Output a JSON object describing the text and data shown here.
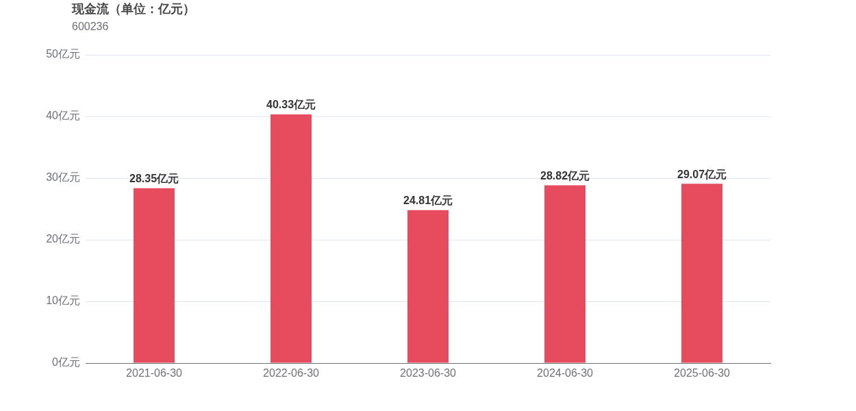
{
  "chart_data": {
    "type": "bar",
    "title": "现金流（单位：亿元）",
    "subtitle": "600236",
    "categories": [
      "2021-06-30",
      "2022-06-30",
      "2023-06-30",
      "2024-06-30",
      "2025-06-30"
    ],
    "values": [
      28.35,
      40.33,
      24.81,
      28.82,
      29.07
    ],
    "value_labels": [
      "28.35亿元",
      "40.33亿元",
      "24.81亿元",
      "28.82亿元",
      "29.07亿元"
    ],
    "color": "#e64c5e",
    "ylim": [
      0,
      50
    ],
    "yticks": [
      {
        "value": 0,
        "label": "0亿元"
      },
      {
        "value": 10,
        "label": "10亿元"
      },
      {
        "value": 20,
        "label": "20亿元"
      },
      {
        "value": 30,
        "label": "30亿元"
      },
      {
        "value": 40,
        "label": "40亿元"
      },
      {
        "value": 50,
        "label": "50亿元"
      }
    ],
    "grid": "y",
    "legend": false
  }
}
